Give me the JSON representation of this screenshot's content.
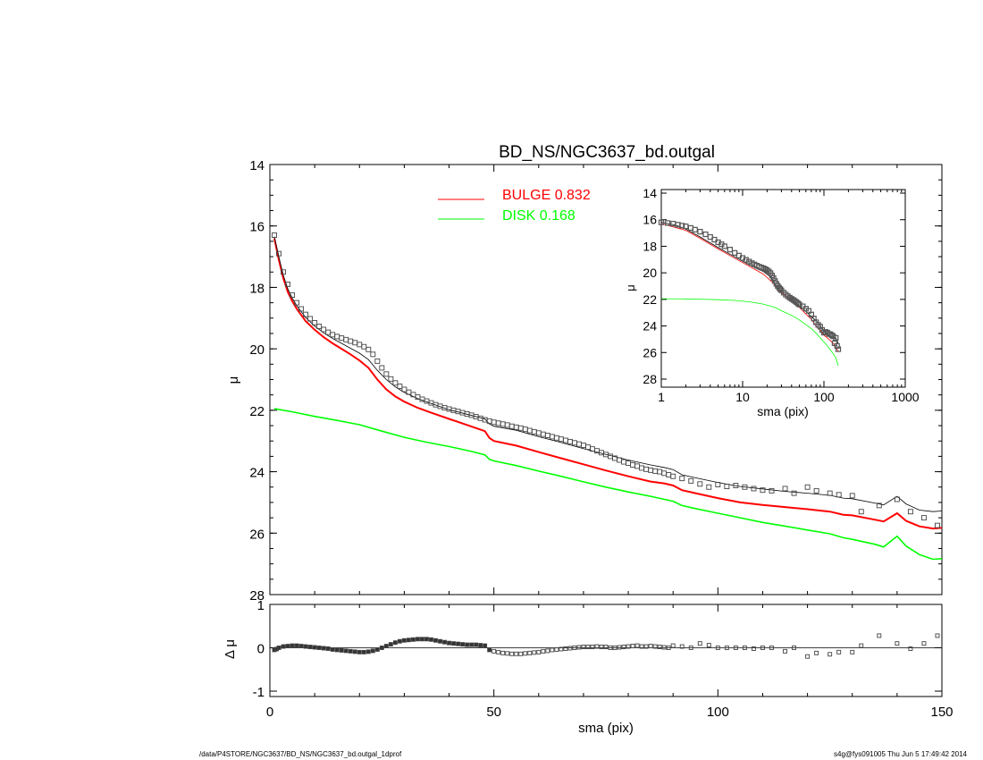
{
  "title": "BD_NS/NGC3637_bd.outgal",
  "footer": {
    "left": "/data/P4STORE/NGC3637/BD_NS/NGC3637_bd.outgal_1dprof",
    "right": "s4g@fys091005  Thu Jun  5 17:49:42 2014"
  },
  "colors": {
    "bulge": "#ff0000",
    "disk": "#00ff00",
    "model": "#000000",
    "data": "#555555"
  },
  "chart_data": [
    {
      "id": "main",
      "type": "line",
      "xlabel": "",
      "ylabel": "μ",
      "xlim": [
        0,
        150
      ],
      "ylim": [
        28,
        14
      ],
      "y_inverted": true,
      "yticks": [
        "14",
        "16",
        "18",
        "20",
        "22",
        "24",
        "26",
        "28"
      ],
      "legend": {
        "placement": "top-center",
        "entries": [
          {
            "label": "BULGE  0.832",
            "color": "#ff0000"
          },
          {
            "label": "DISK  0.168",
            "color": "#00ff00"
          }
        ]
      },
      "data_points": {
        "x": [
          1,
          2,
          3,
          4,
          5,
          6,
          7,
          8,
          9,
          10,
          11,
          12,
          13,
          14,
          15,
          16,
          17,
          18,
          19,
          20,
          21,
          22,
          23,
          24,
          25,
          26,
          27,
          28,
          29,
          30,
          31,
          32,
          33,
          34,
          35,
          36,
          37,
          38,
          39,
          40,
          41,
          42,
          43,
          44,
          45,
          46,
          47,
          48,
          49,
          50,
          51,
          52,
          53,
          54,
          55,
          56,
          57,
          58,
          59,
          60,
          61,
          62,
          63,
          64,
          65,
          66,
          67,
          68,
          69,
          70,
          71,
          72,
          73,
          74,
          75,
          76,
          77,
          78,
          79,
          80,
          81,
          82,
          83,
          84,
          85,
          86,
          87,
          88,
          89,
          90,
          92,
          94,
          96,
          98,
          100,
          102,
          104,
          106,
          108,
          110,
          112,
          115,
          117,
          120,
          122,
          125,
          127,
          130,
          132,
          136,
          140,
          143,
          146,
          149
        ],
        "y": [
          16.3,
          16.9,
          17.5,
          17.9,
          18.25,
          18.5,
          18.7,
          18.88,
          19.02,
          19.15,
          19.27,
          19.37,
          19.46,
          19.54,
          19.6,
          19.65,
          19.7,
          19.75,
          19.8,
          19.86,
          19.93,
          20.02,
          20.18,
          20.4,
          20.62,
          20.82,
          20.98,
          21.11,
          21.22,
          21.32,
          21.41,
          21.49,
          21.57,
          21.64,
          21.7,
          21.76,
          21.82,
          21.87,
          21.92,
          21.96,
          22.0,
          22.04,
          22.08,
          22.12,
          22.16,
          22.21,
          22.26,
          22.31,
          22.35,
          22.39,
          22.42,
          22.45,
          22.48,
          22.52,
          22.55,
          22.58,
          22.62,
          22.66,
          22.7,
          22.74,
          22.78,
          22.82,
          22.86,
          22.9,
          22.94,
          22.98,
          23.02,
          23.06,
          23.1,
          23.14,
          23.2,
          23.26,
          23.32,
          23.38,
          23.44,
          23.5,
          23.56,
          23.62,
          23.68,
          23.72,
          23.78,
          23.82,
          23.88,
          23.92,
          23.95,
          23.98,
          24.0,
          24.05,
          24.1,
          24.15,
          24.22,
          24.3,
          24.4,
          24.5,
          24.42,
          24.48,
          24.45,
          24.5,
          24.55,
          24.6,
          24.62,
          24.55,
          24.7,
          24.5,
          24.62,
          24.7,
          24.75,
          24.78,
          25.3,
          25.1,
          24.9,
          25.3,
          25.5,
          25.75
        ]
      },
      "series": [
        {
          "name": "BULGE  0.832",
          "color": "#ff0000",
          "x": [
            1,
            2,
            3,
            4,
            5,
            6,
            8,
            10,
            12,
            14,
            16,
            18,
            20,
            22,
            24,
            26,
            28,
            30,
            33,
            36,
            40,
            44,
            48,
            49,
            50,
            55,
            60,
            65,
            70,
            75,
            80,
            85,
            88,
            90,
            92,
            95,
            100,
            105,
            110,
            115,
            120,
            125,
            128,
            130,
            135,
            137,
            140,
            142,
            145,
            148,
            150
          ],
          "y": [
            16.4,
            17.1,
            17.7,
            18.15,
            18.45,
            18.7,
            19.1,
            19.38,
            19.62,
            19.82,
            20.0,
            20.18,
            20.38,
            20.62,
            21.0,
            21.32,
            21.55,
            21.72,
            21.92,
            22.08,
            22.28,
            22.48,
            22.68,
            22.9,
            23.0,
            23.15,
            23.36,
            23.56,
            23.76,
            23.96,
            24.15,
            24.32,
            24.38,
            24.45,
            24.6,
            24.7,
            24.86,
            25.0,
            25.08,
            25.15,
            25.22,
            25.3,
            25.4,
            25.42,
            25.56,
            25.62,
            25.35,
            25.6,
            25.78,
            25.85,
            25.83
          ]
        },
        {
          "name": "DISK  0.168",
          "color": "#00ff00",
          "x": [
            1,
            5,
            10,
            15,
            20,
            25,
            30,
            35,
            40,
            45,
            48,
            49,
            50,
            55,
            60,
            65,
            70,
            75,
            80,
            85,
            90,
            92,
            95,
            100,
            105,
            110,
            115,
            120,
            125,
            128,
            130,
            135,
            137,
            140,
            142,
            145,
            148,
            150
          ],
          "y": [
            21.95,
            22.05,
            22.2,
            22.33,
            22.47,
            22.68,
            22.88,
            23.04,
            23.18,
            23.34,
            23.45,
            23.6,
            23.65,
            23.8,
            23.98,
            24.15,
            24.33,
            24.5,
            24.66,
            24.8,
            24.96,
            25.1,
            25.2,
            25.35,
            25.5,
            25.65,
            25.77,
            25.9,
            26.02,
            26.15,
            26.2,
            26.36,
            26.45,
            26.1,
            26.42,
            26.7,
            26.85,
            26.83
          ]
        },
        {
          "name": "",
          "color": "#000000",
          "x": [
            1,
            2,
            3,
            4,
            5,
            6,
            8,
            10,
            12,
            14,
            16,
            18,
            20,
            22,
            24,
            26,
            28,
            30,
            33,
            36,
            40,
            44,
            48,
            49,
            50,
            55,
            60,
            65,
            70,
            75,
            80,
            85,
            88,
            90,
            92,
            95,
            100,
            105,
            110,
            115,
            120,
            125,
            128,
            130,
            135,
            137,
            140,
            142,
            145,
            148,
            150
          ],
          "y": [
            16.35,
            17.0,
            17.6,
            18.05,
            18.35,
            18.6,
            18.98,
            19.26,
            19.48,
            19.66,
            19.82,
            19.98,
            20.14,
            20.35,
            20.7,
            21.0,
            21.24,
            21.42,
            21.62,
            21.78,
            21.98,
            22.13,
            22.28,
            22.45,
            22.52,
            22.65,
            22.86,
            23.05,
            23.25,
            23.44,
            23.62,
            23.78,
            23.86,
            23.93,
            24.1,
            24.2,
            24.35,
            24.48,
            24.56,
            24.64,
            24.7,
            24.77,
            24.86,
            24.88,
            25.02,
            25.08,
            24.8,
            25.05,
            25.25,
            25.3,
            25.28
          ]
        }
      ]
    },
    {
      "id": "residual",
      "type": "scatter",
      "xlabel": "sma (pix)",
      "ylabel": "Δ μ",
      "xlim": [
        0,
        150
      ],
      "ylim": [
        -1,
        1
      ],
      "xticks": [
        "0",
        "50",
        "100",
        "150"
      ],
      "yticks": [
        "1",
        "0",
        "-1"
      ],
      "x": [
        1,
        1.5,
        2,
        3,
        4,
        5,
        6,
        7,
        8,
        9,
        10,
        11,
        12,
        13,
        14,
        15,
        16,
        17,
        18,
        19,
        20,
        21,
        22,
        23,
        24,
        25,
        26,
        27,
        28,
        29,
        30,
        31,
        32,
        33,
        34,
        35,
        36,
        37,
        38,
        39,
        40,
        41,
        42,
        43,
        44,
        45,
        46,
        47,
        48,
        49,
        50,
        51,
        52,
        53,
        54,
        55,
        56,
        57,
        58,
        59,
        60,
        61,
        62,
        63,
        64,
        65,
        66,
        67,
        68,
        69,
        70,
        71,
        72,
        73,
        74,
        75,
        76,
        77,
        78,
        79,
        80,
        81,
        82,
        83,
        84,
        85,
        86,
        87,
        88,
        89,
        90,
        92,
        94,
        96,
        98,
        100,
        102,
        104,
        106,
        108,
        110,
        112,
        115,
        117,
        120,
        122,
        125,
        127,
        130,
        132,
        136,
        140,
        143,
        146,
        149
      ],
      "y": [
        -0.05,
        -0.03,
        0.0,
        0.03,
        0.04,
        0.05,
        0.05,
        0.04,
        0.03,
        0.02,
        0.01,
        0.0,
        -0.01,
        -0.02,
        -0.04,
        -0.05,
        -0.06,
        -0.07,
        -0.08,
        -0.09,
        -0.1,
        -0.1,
        -0.09,
        -0.07,
        -0.04,
        0.0,
        0.04,
        0.08,
        0.12,
        0.15,
        0.17,
        0.18,
        0.19,
        0.2,
        0.2,
        0.2,
        0.19,
        0.17,
        0.15,
        0.13,
        0.11,
        0.1,
        0.09,
        0.08,
        0.07,
        0.07,
        0.07,
        0.06,
        0.05,
        -0.05,
        -0.08,
        -0.1,
        -0.12,
        -0.13,
        -0.14,
        -0.14,
        -0.14,
        -0.13,
        -0.12,
        -0.11,
        -0.1,
        -0.08,
        -0.07,
        -0.05,
        -0.04,
        -0.03,
        -0.02,
        -0.01,
        0.0,
        0.01,
        0.02,
        0.02,
        0.02,
        0.03,
        0.02,
        0.02,
        0.0,
        0.0,
        0.01,
        0.02,
        0.03,
        0.04,
        0.05,
        0.03,
        0.03,
        0.04,
        0.03,
        0.02,
        0.01,
        0.0,
        0.05,
        0.03,
        0.0,
        0.1,
        0.06,
        0.0,
        0.0,
        0.0,
        0.0,
        -0.02,
        0.0,
        0.0,
        -0.08,
        0.0,
        -0.2,
        -0.12,
        -0.15,
        -0.1,
        -0.1,
        0.05,
        0.28,
        0.1,
        -0.02,
        0.1,
        0.28
      ]
    },
    {
      "id": "inset",
      "type": "line",
      "xlabel": "sma (pix)",
      "ylabel": "μ",
      "x_scale": "log",
      "xlim": [
        1,
        1000
      ],
      "ylim": [
        28,
        14
      ],
      "y_inverted": true,
      "xticks": [
        "1",
        "10",
        "100",
        "1000"
      ],
      "yticks": [
        "14",
        "16",
        "18",
        "20",
        "22",
        "24",
        "26",
        "28"
      ],
      "series": [
        {
          "name": "",
          "color": "#000000",
          "x": [
            1,
            1.5,
            2,
            3,
            5,
            8,
            12,
            18,
            22,
            26,
            30,
            35,
            40,
            50,
            60,
            70,
            80,
            90,
            100,
            110,
            120,
            130,
            140,
            150
          ],
          "y": [
            16.2,
            16.4,
            16.7,
            17.3,
            18.1,
            18.8,
            19.4,
            19.9,
            20.3,
            21.0,
            21.4,
            21.8,
            22.0,
            22.5,
            22.9,
            23.3,
            23.6,
            24.0,
            24.4,
            24.6,
            24.8,
            24.9,
            24.9,
            25.3
          ]
        },
        {
          "name": "BULGE  0.832",
          "color": "#ff0000",
          "x": [
            1,
            2,
            3,
            5,
            8,
            12,
            18,
            25,
            30,
            40,
            50,
            60,
            70,
            80,
            90,
            100,
            110,
            120,
            130,
            140,
            150
          ],
          "y": [
            16.3,
            16.8,
            17.4,
            18.2,
            18.9,
            19.5,
            20.1,
            20.9,
            21.5,
            22.1,
            22.6,
            23.1,
            23.5,
            24.0,
            24.3,
            24.7,
            24.9,
            25.1,
            25.3,
            25.6,
            25.9
          ]
        },
        {
          "name": "DISK  0.168",
          "color": "#00ff00",
          "x": [
            1,
            2,
            3,
            5,
            8,
            12,
            18,
            25,
            30,
            40,
            50,
            60,
            70,
            80,
            90,
            100,
            110,
            120,
            130,
            140,
            150
          ],
          "y": [
            21.95,
            21.96,
            21.98,
            22.02,
            22.08,
            22.18,
            22.35,
            22.6,
            22.85,
            23.2,
            23.55,
            23.9,
            24.2,
            24.55,
            24.9,
            25.2,
            25.5,
            25.8,
            26.1,
            26.4,
            27.0
          ]
        },
        {
          "name": "",
          "color": "#000000",
          "marker": "square",
          "x": [
            1,
            1.2,
            1.4,
            1.6,
            1.8,
            2,
            2.3,
            2.6,
            3,
            3.5,
            4,
            4.5,
            5,
            5.5,
            6,
            7,
            8,
            9,
            10,
            11,
            12,
            13,
            14,
            15,
            16,
            17,
            18,
            19,
            20,
            21,
            22,
            23,
            24,
            25,
            26,
            27,
            28,
            29,
            30,
            32,
            34,
            36,
            38,
            40,
            42,
            44,
            46,
            48,
            50,
            55,
            60,
            65,
            70,
            75,
            80,
            85,
            90,
            95,
            100,
            105,
            110,
            115,
            120,
            125,
            130,
            135,
            140,
            145,
            150
          ],
          "y": [
            16.2,
            16.25,
            16.3,
            16.38,
            16.45,
            16.5,
            16.62,
            16.75,
            16.9,
            17.1,
            17.3,
            17.5,
            17.7,
            17.85,
            18.0,
            18.25,
            18.5,
            18.7,
            18.88,
            19.02,
            19.15,
            19.27,
            19.37,
            19.46,
            19.54,
            19.6,
            19.65,
            19.72,
            19.8,
            19.9,
            20.02,
            20.2,
            20.4,
            20.62,
            20.82,
            20.98,
            21.11,
            21.22,
            21.32,
            21.49,
            21.64,
            21.76,
            21.87,
            21.96,
            22.04,
            22.12,
            22.21,
            22.31,
            22.39,
            22.52,
            22.7,
            22.86,
            23.14,
            23.44,
            23.72,
            23.92,
            24.05,
            24.3,
            24.5,
            24.45,
            24.5,
            24.6,
            24.62,
            24.7,
            24.78,
            25.3,
            24.9,
            25.5,
            25.75
          ]
        }
      ]
    }
  ]
}
